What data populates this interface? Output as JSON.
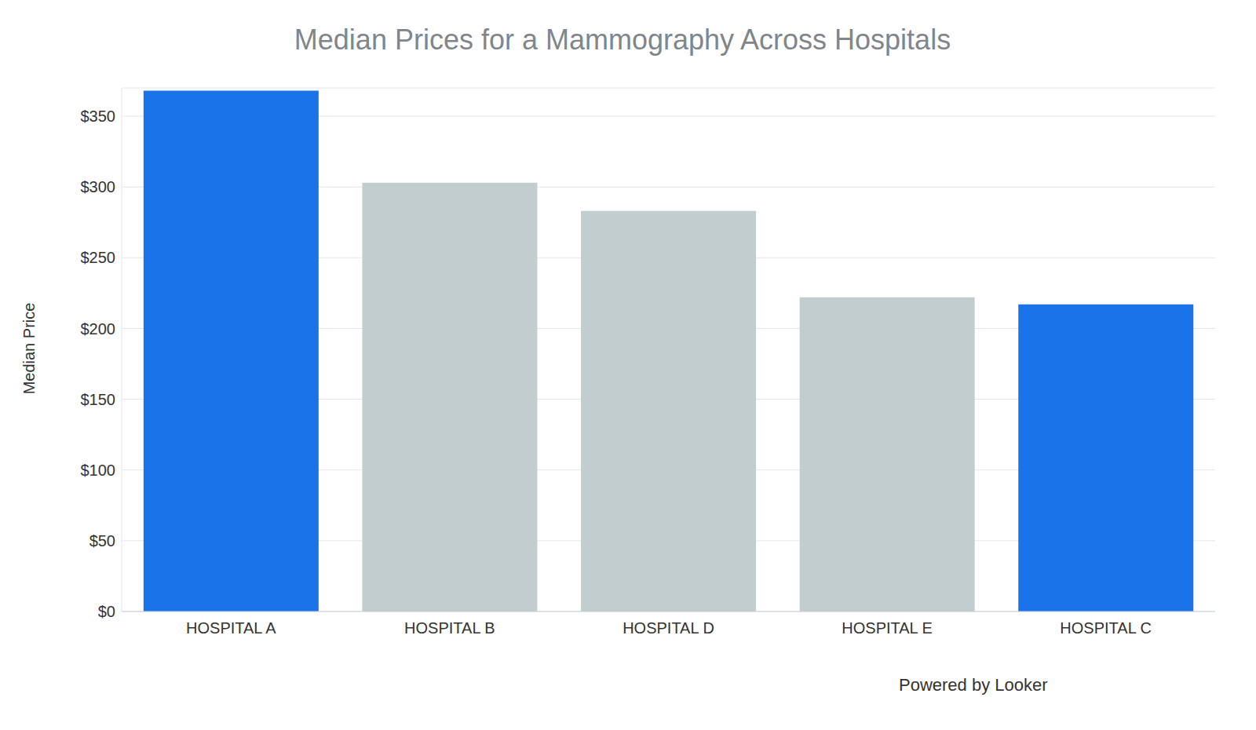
{
  "chart_data": {
    "type": "bar",
    "title": "Median Prices for a Mammography Across Hospitals",
    "y_label": "Median Price",
    "categories": [
      "HOSPITAL A",
      "HOSPITAL B",
      "HOSPITAL D",
      "HOSPITAL E",
      "HOSPITAL C"
    ],
    "values": [
      368,
      303,
      283,
      222,
      217
    ],
    "colors": [
      "#1a73e8",
      "#c1cdcf",
      "#c1cdcf",
      "#c1cdcf",
      "#1a73e8"
    ],
    "ylim": [
      0,
      370
    ],
    "yticks": [
      {
        "value": 0,
        "label": "$0"
      },
      {
        "value": 50,
        "label": "$50"
      },
      {
        "value": 100,
        "label": "$100"
      },
      {
        "value": 150,
        "label": "$150"
      },
      {
        "value": 200,
        "label": "$200"
      },
      {
        "value": 250,
        "label": "$250"
      },
      {
        "value": 300,
        "label": "$300"
      },
      {
        "value": 350,
        "label": "$350"
      }
    ],
    "grid": true,
    "annotation": "Powered by Looker"
  }
}
